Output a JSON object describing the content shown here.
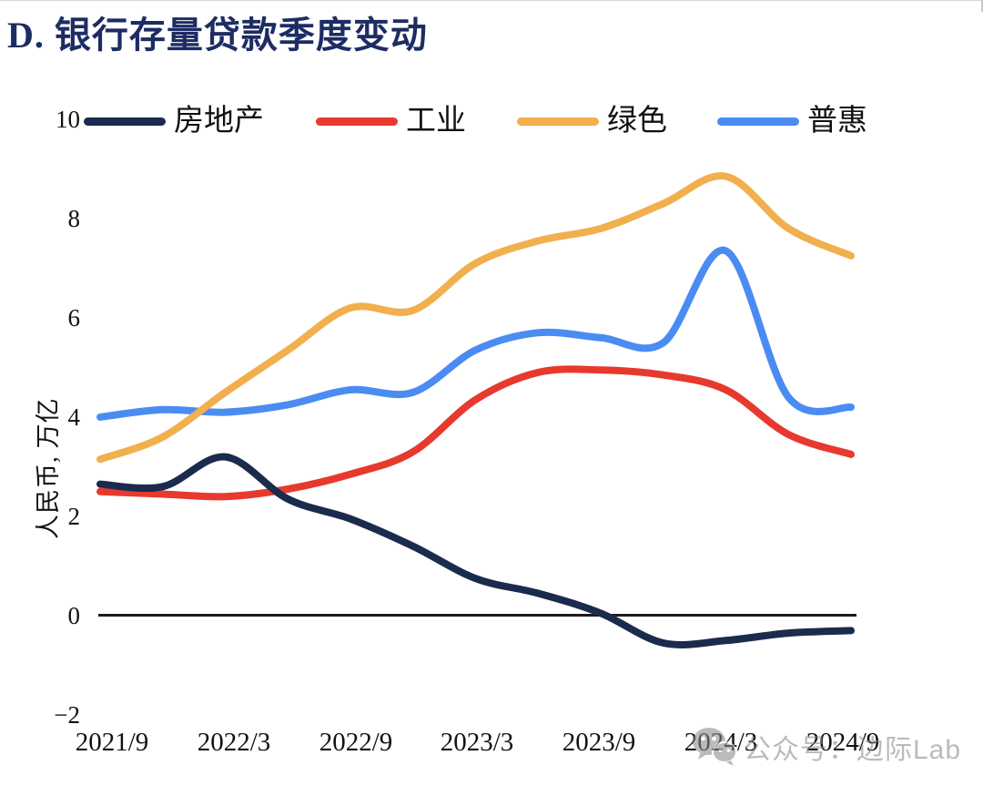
{
  "page": {
    "title": "D. 银行存量贷款季度变动"
  },
  "legend": {
    "items": [
      {
        "label": "房地产",
        "color": "#1b2b4d"
      },
      {
        "label": "工业",
        "color": "#e7392e"
      },
      {
        "label": "绿色",
        "color": "#f1af4e"
      },
      {
        "label": "普惠",
        "color": "#4a8cf1"
      }
    ]
  },
  "y_axis": {
    "title": "人民币, 万亿",
    "ticks": [
      {
        "label": "10",
        "value": 10
      },
      {
        "label": "8",
        "value": 8
      },
      {
        "label": "6",
        "value": 6
      },
      {
        "label": "4",
        "value": 4
      },
      {
        "label": "2",
        "value": 2
      },
      {
        "label": "0",
        "value": 0
      },
      {
        "label": "−2",
        "value": -2
      }
    ]
  },
  "x_axis": {
    "ticks": [
      "2021/9",
      "2022/3",
      "2022/9",
      "2023/3",
      "2023/9",
      "2024/3",
      "2024/9"
    ]
  },
  "watermark": {
    "icon": "wechat-icon",
    "text": "公众号：边际Lab"
  },
  "chart_data": {
    "type": "line",
    "title": "D. 银行存量贷款季度变动",
    "ylabel": "人民币, 万亿",
    "ylim": [
      -2,
      10
    ],
    "grid": false,
    "legend_position": "top",
    "baseline": 0,
    "x": [
      "2021/9",
      "2021/12",
      "2022/3",
      "2022/6",
      "2022/9",
      "2022/12",
      "2023/3",
      "2023/6",
      "2023/9",
      "2023/12",
      "2024/3",
      "2024/6",
      "2024/9"
    ],
    "series": [
      {
        "name": "房地产",
        "color": "#1b2b4d",
        "values": [
          2.65,
          2.6,
          3.2,
          2.35,
          1.95,
          1.4,
          0.75,
          0.45,
          0.05,
          -0.55,
          -0.5,
          -0.35,
          -0.3
        ]
      },
      {
        "name": "工业",
        "color": "#e7392e",
        "values": [
          2.5,
          2.45,
          2.4,
          2.55,
          2.85,
          3.3,
          4.35,
          4.9,
          4.95,
          4.85,
          4.55,
          3.65,
          3.25
        ]
      },
      {
        "name": "绿色",
        "color": "#f1af4e",
        "values": [
          3.15,
          3.6,
          4.5,
          5.35,
          6.2,
          6.15,
          7.1,
          7.55,
          7.8,
          8.3,
          8.85,
          7.8,
          7.25
        ]
      },
      {
        "name": "普惠",
        "color": "#4a8cf1",
        "values": [
          4.0,
          4.15,
          4.1,
          4.25,
          4.55,
          4.5,
          5.35,
          5.7,
          5.6,
          5.5,
          7.35,
          4.4,
          4.2
        ]
      }
    ]
  }
}
